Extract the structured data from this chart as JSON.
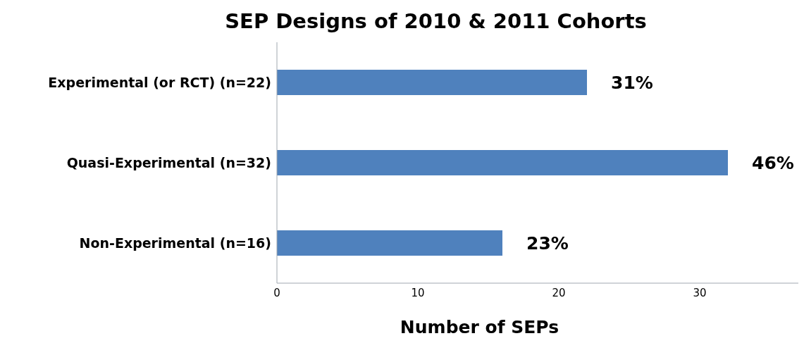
{
  "chart_data": {
    "type": "bar",
    "orientation": "horizontal",
    "title": "SEP Designs of 2010 & 2011 Cohorts",
    "xlabel": "Number of SEPs",
    "categories": [
      "Experimental (or RCT) (n=22)",
      "Quasi-Experimental (n=32)",
      "Non-Experimental (n=16)"
    ],
    "values": [
      22,
      32,
      16
    ],
    "color": "#4f81bd",
    "annotations": [
      {
        "text": "31%",
        "x": 22,
        "y": "Experimental (or RCT) (n=22)"
      },
      {
        "text": "46%",
        "x": 32,
        "y": "Quasi-Experimental (n=32)"
      },
      {
        "text": "23%",
        "x": 16,
        "y": "Non-Experimental (n=16)"
      }
    ],
    "xlim": [
      0,
      37
    ],
    "xticks": [
      0,
      10,
      20,
      30
    ]
  }
}
